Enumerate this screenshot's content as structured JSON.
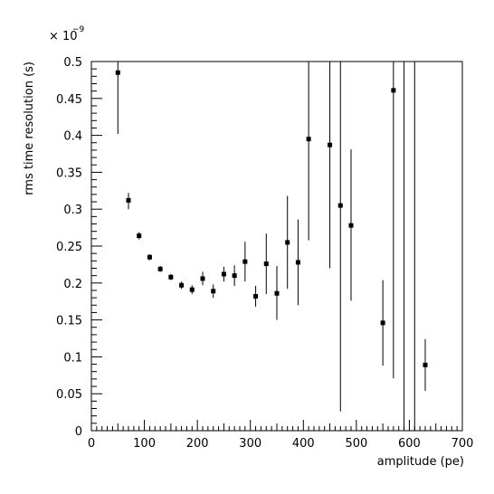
{
  "chart_data": {
    "type": "scatter",
    "title": "",
    "xlabel": "amplitude (pe)",
    "ylabel": "rms time resolution (s)",
    "y_scale_base": "× 10",
    "y_scale_exponent": "−9",
    "xlim": [
      0,
      700
    ],
    "ylim": [
      0,
      0.5
    ],
    "x_ticks": [
      0,
      100,
      200,
      300,
      400,
      500,
      600,
      700
    ],
    "x_tick_labels": [
      "0",
      "100",
      "200",
      "300",
      "400",
      "500",
      "600",
      "700"
    ],
    "y_ticks": [
      0,
      0.05,
      0.1,
      0.15,
      0.2,
      0.25,
      0.3,
      0.35,
      0.4,
      0.45,
      0.5
    ],
    "y_tick_labels": [
      "0",
      "0.05",
      "0.1",
      "0.15",
      "0.2",
      "0.25",
      "0.3",
      "0.35",
      "0.4",
      "0.45",
      "0.5"
    ],
    "grid": false,
    "marker_color": "#000000",
    "points": [
      {
        "x": 50,
        "y": 0.485,
        "lo": 0.402,
        "hi": 0.5
      },
      {
        "x": 70,
        "y": 0.312,
        "lo": 0.3,
        "hi": 0.322
      },
      {
        "x": 90,
        "y": 0.264,
        "lo": 0.259,
        "hi": 0.269
      },
      {
        "x": 110,
        "y": 0.235,
        "lo": 0.231,
        "hi": 0.239
      },
      {
        "x": 130,
        "y": 0.219,
        "lo": 0.215,
        "hi": 0.223
      },
      {
        "x": 150,
        "y": 0.208,
        "lo": 0.204,
        "hi": 0.212
      },
      {
        "x": 170,
        "y": 0.197,
        "lo": 0.192,
        "hi": 0.202
      },
      {
        "x": 190,
        "y": 0.191,
        "lo": 0.185,
        "hi": 0.197
      },
      {
        "x": 210,
        "y": 0.206,
        "lo": 0.197,
        "hi": 0.215
      },
      {
        "x": 230,
        "y": 0.189,
        "lo": 0.18,
        "hi": 0.198
      },
      {
        "x": 250,
        "y": 0.212,
        "lo": 0.202,
        "hi": 0.222
      },
      {
        "x": 270,
        "y": 0.21,
        "lo": 0.196,
        "hi": 0.224
      },
      {
        "x": 290,
        "y": 0.229,
        "lo": 0.202,
        "hi": 0.256
      },
      {
        "x": 310,
        "y": 0.182,
        "lo": 0.168,
        "hi": 0.196
      },
      {
        "x": 330,
        "y": 0.226,
        "lo": 0.185,
        "hi": 0.267
      },
      {
        "x": 350,
        "y": 0.186,
        "lo": 0.15,
        "hi": 0.223
      },
      {
        "x": 370,
        "y": 0.255,
        "lo": 0.192,
        "hi": 0.318
      },
      {
        "x": 390,
        "y": 0.228,
        "lo": 0.17,
        "hi": 0.286
      },
      {
        "x": 410,
        "y": 0.395,
        "lo": 0.258,
        "hi": 0.5
      },
      {
        "x": 450,
        "y": 0.387,
        "lo": 0.22,
        "hi": 0.5
      },
      {
        "x": 470,
        "y": 0.305,
        "lo": 0.026,
        "hi": 0.5
      },
      {
        "x": 490,
        "y": 0.278,
        "lo": 0.176,
        "hi": 0.381
      },
      {
        "x": 550,
        "y": 0.146,
        "lo": 0.088,
        "hi": 0.204
      },
      {
        "x": 570,
        "y": 0.461,
        "lo": 0.071,
        "hi": 0.5
      },
      {
        "x": 590,
        "y": null,
        "lo": 0.0,
        "hi": 0.5
      },
      {
        "x": 610,
        "y": null,
        "lo": 0.0,
        "hi": 0.5
      },
      {
        "x": 630,
        "y": 0.089,
        "lo": 0.054,
        "hi": 0.124
      }
    ]
  }
}
